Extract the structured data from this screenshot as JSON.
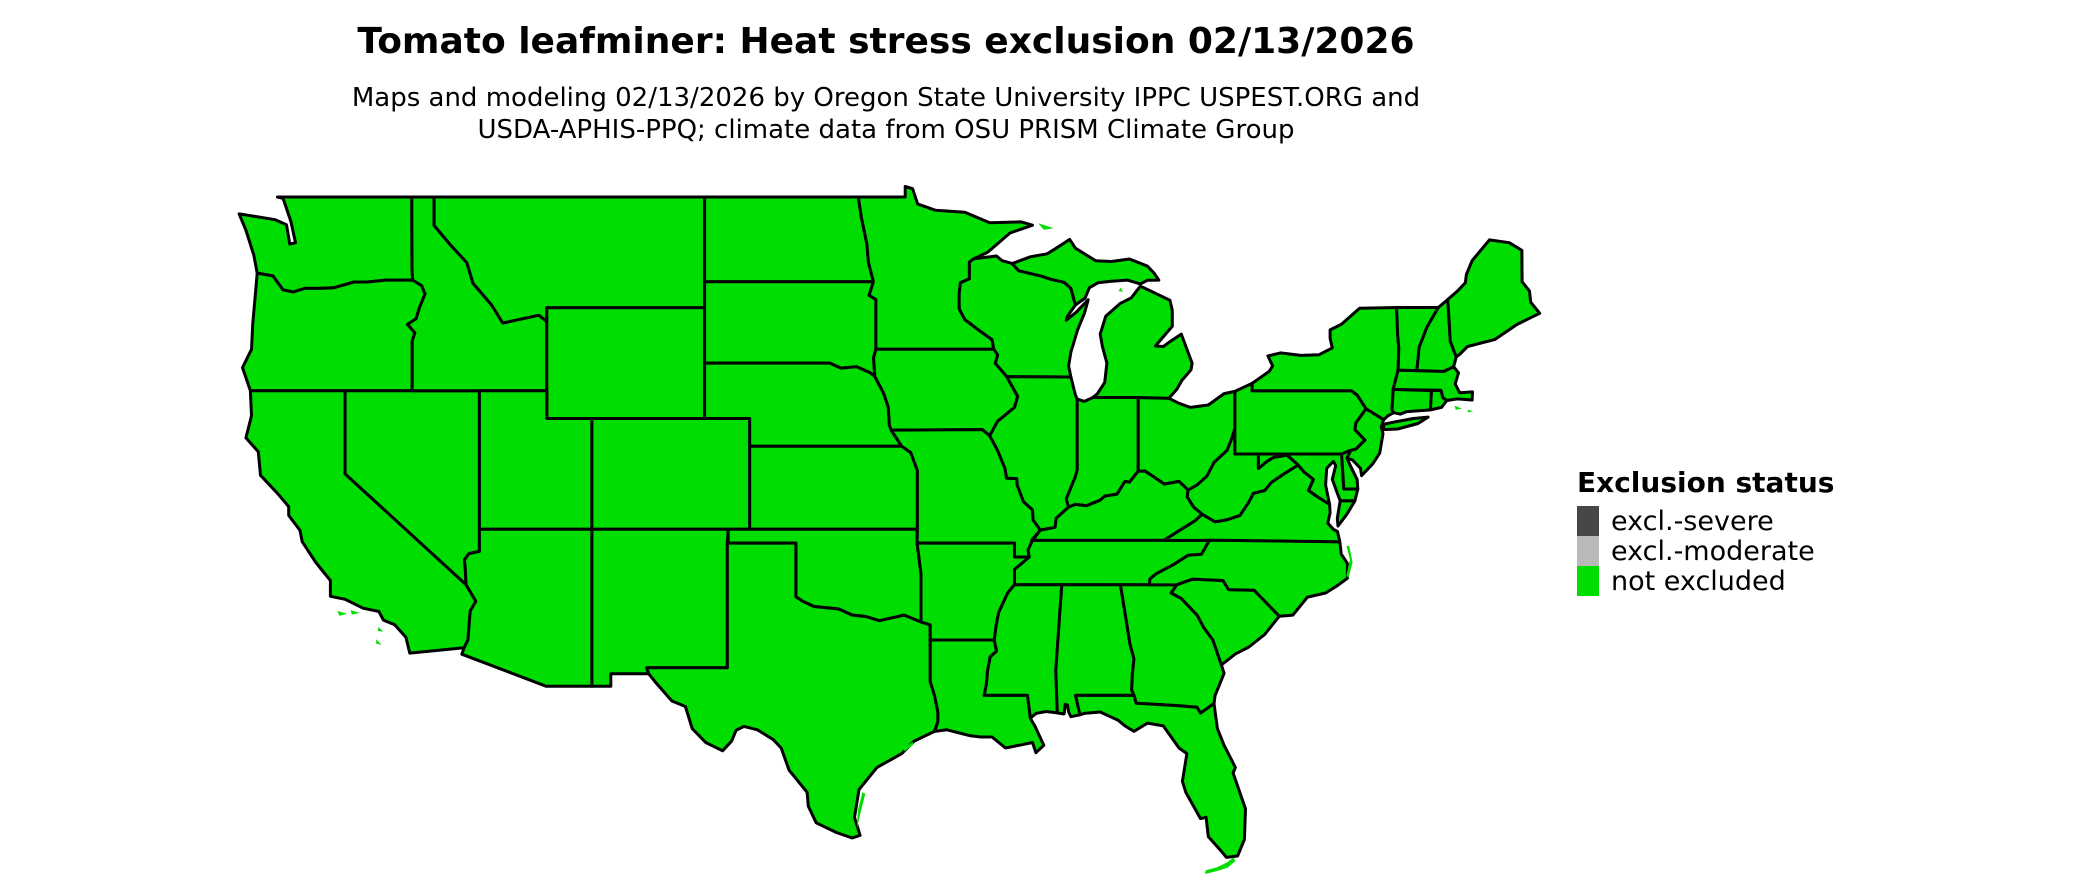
{
  "title": "Tomato leafminer: Heat stress exclusion 02/13/2026",
  "subtitle_line1": "Maps and modeling 02/13/2026 by Oregon State University IPPC USPEST.ORG and",
  "subtitle_line2": "USDA-APHIS-PPQ; climate data from OSU PRISM Climate Group",
  "legend": {
    "title": "Exclusion status",
    "items": [
      {
        "label": "excl.-severe",
        "color": "#474747"
      },
      {
        "label": "excl.-moderate",
        "color": "#b9b9b9"
      },
      {
        "label": "not excluded",
        "color": "#00dd00"
      }
    ]
  },
  "map": {
    "region": "Continental United States",
    "all_states_status": "not excluded",
    "fill_color": "#00dd00",
    "border_color": "#000000",
    "background": "#ffffff"
  }
}
